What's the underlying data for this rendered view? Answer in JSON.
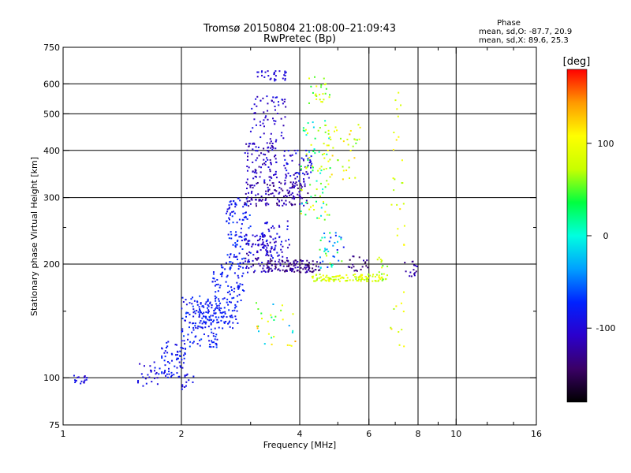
{
  "chart_data": [
    {
      "type": "scatter",
      "title": "Tromsø 20150804 21:08:00–21:09:43",
      "subtitle": "RwPretec (Bp)",
      "xlabel": "Frequency [MHz]",
      "ylabel": "Stationary phase Virtual Height [km]",
      "xscale": "log",
      "yscale": "log",
      "xlim": [
        1,
        16
      ],
      "ylim": [
        75,
        750
      ],
      "x_ticks": [
        1,
        2,
        4,
        6,
        8,
        10,
        16
      ],
      "x_tick_labels": [
        "1",
        "2",
        "4",
        "6",
        "8",
        "10",
        "16"
      ],
      "x_minor_ticks": [
        3,
        5,
        7,
        9,
        12,
        14
      ],
      "y_ticks": [
        75,
        100,
        200,
        300,
        400,
        500,
        600,
        750
      ],
      "y_tick_labels": [
        "75",
        "100",
        "200",
        "300",
        "400",
        "500",
        "600",
        "750"
      ],
      "y_minor_ticks": [
        150,
        250
      ],
      "grid_x": [
        2,
        4,
        6,
        8,
        10
      ],
      "grid_y": [
        100,
        200,
        300,
        400,
        500,
        600
      ],
      "grid": true,
      "stats": {
        "heading": "Phase",
        "line_O": "mean, sd,O: -87.7, 20.9",
        "line_X": "mean, sd,X:  89.6, 25.3"
      },
      "clusters": [
        {
          "x": [
            1.05,
            1.15
          ],
          "y": [
            96,
            102
          ],
          "phase": [
            -110,
            -80
          ],
          "n": 18
        },
        {
          "x": [
            1.55,
            1.75
          ],
          "y": [
            93,
            110
          ],
          "phase": [
            -110,
            -80
          ],
          "n": 25
        },
        {
          "x": [
            1.75,
            2.05
          ],
          "y": [
            100,
            125
          ],
          "phase": [
            -100,
            -70
          ],
          "n": 70
        },
        {
          "x": [
            2.0,
            2.15
          ],
          "y": [
            93,
            103
          ],
          "phase": [
            -100,
            -80
          ],
          "n": 12
        },
        {
          "x": [
            2.0,
            2.5
          ],
          "y": [
            120,
            165
          ],
          "phase": [
            -100,
            -60
          ],
          "n": 130
        },
        {
          "x": [
            2.2,
            2.8
          ],
          "y": [
            135,
            160
          ],
          "phase": [
            -90,
            -70
          ],
          "n": 90
        },
        {
          "x": [
            2.4,
            2.9
          ],
          "y": [
            160,
            200
          ],
          "phase": [
            -90,
            -70
          ],
          "n": 70
        },
        {
          "x": [
            2.6,
            3.0
          ],
          "y": [
            200,
            300
          ],
          "phase": [
            -100,
            -60
          ],
          "n": 110
        },
        {
          "x": [
            2.9,
            3.4
          ],
          "y": [
            190,
            240
          ],
          "phase": [
            -130,
            -90
          ],
          "n": 90
        },
        {
          "x": [
            2.9,
            4.2
          ],
          "y": [
            285,
            330
          ],
          "phase": [
            -140,
            -100
          ],
          "n": 140
        },
        {
          "x": [
            2.9,
            3.5
          ],
          "y": [
            330,
            420
          ],
          "phase": [
            -130,
            -90
          ],
          "n": 90
        },
        {
          "x": [
            3.0,
            3.7
          ],
          "y": [
            420,
            560
          ],
          "phase": [
            -120,
            -90
          ],
          "n": 60
        },
        {
          "x": [
            3.05,
            3.7
          ],
          "y": [
            610,
            650
          ],
          "phase": [
            -110,
            -90
          ],
          "n": 30
        },
        {
          "x": [
            3.3,
            4.5
          ],
          "y": [
            190,
            205
          ],
          "phase": [
            -150,
            -110
          ],
          "n": 110
        },
        {
          "x": [
            3.2,
            3.8
          ],
          "y": [
            205,
            260
          ],
          "phase": [
            -120,
            -80
          ],
          "n": 60
        },
        {
          "x": [
            3.6,
            4.3
          ],
          "y": [
            330,
            400
          ],
          "phase": [
            -120,
            -80
          ],
          "n": 60
        },
        {
          "x": [
            4.0,
            4.8
          ],
          "y": [
            260,
            480
          ],
          "phase": [
            -20,
            110
          ],
          "n": 80
        },
        {
          "x": [
            4.2,
            4.8
          ],
          "y": [
            520,
            640
          ],
          "phase": [
            40,
            110
          ],
          "n": 25
        },
        {
          "x": [
            4.3,
            6.5
          ],
          "y": [
            180,
            188
          ],
          "phase": [
            60,
            110
          ],
          "n": 110
        },
        {
          "x": [
            4.6,
            5.7
          ],
          "y": [
            330,
            470
          ],
          "phase": [
            50,
            130
          ],
          "n": 45
        },
        {
          "x": [
            4.5,
            5.2
          ],
          "y": [
            195,
            245
          ],
          "phase": [
            -100,
            80
          ],
          "n": 40
        },
        {
          "x": [
            5.3,
            6.0
          ],
          "y": [
            190,
            210
          ],
          "phase": [
            -160,
            -110
          ],
          "n": 20
        },
        {
          "x": [
            6.3,
            6.7
          ],
          "y": [
            180,
            210
          ],
          "phase": [
            40,
            100
          ],
          "n": 15
        },
        {
          "x": [
            6.8,
            7.4
          ],
          "y": [
            120,
            640
          ],
          "phase": [
            60,
            120
          ],
          "n": 35
        },
        {
          "x": [
            7.4,
            8.0
          ],
          "y": [
            185,
            205
          ],
          "phase": [
            -140,
            -100
          ],
          "n": 15
        },
        {
          "x": [
            3.1,
            3.9
          ],
          "y": [
            120,
            160
          ],
          "phase": [
            -40,
            140
          ],
          "n": 30
        }
      ]
    },
    {
      "type": "heatmap",
      "title": "[deg]",
      "colorbar_ticks": [
        100,
        0,
        -100
      ],
      "colorbar_tick_labels": [
        "100",
        "0",
        "-100"
      ],
      "range": [
        -180,
        180
      ],
      "colormap": [
        "#000000",
        "#3a0066",
        "#2b00cc",
        "#0022ff",
        "#00a0ff",
        "#00ffe0",
        "#00ff40",
        "#c8ff00",
        "#ffff00",
        "#ff9900",
        "#ff0000"
      ]
    }
  ]
}
